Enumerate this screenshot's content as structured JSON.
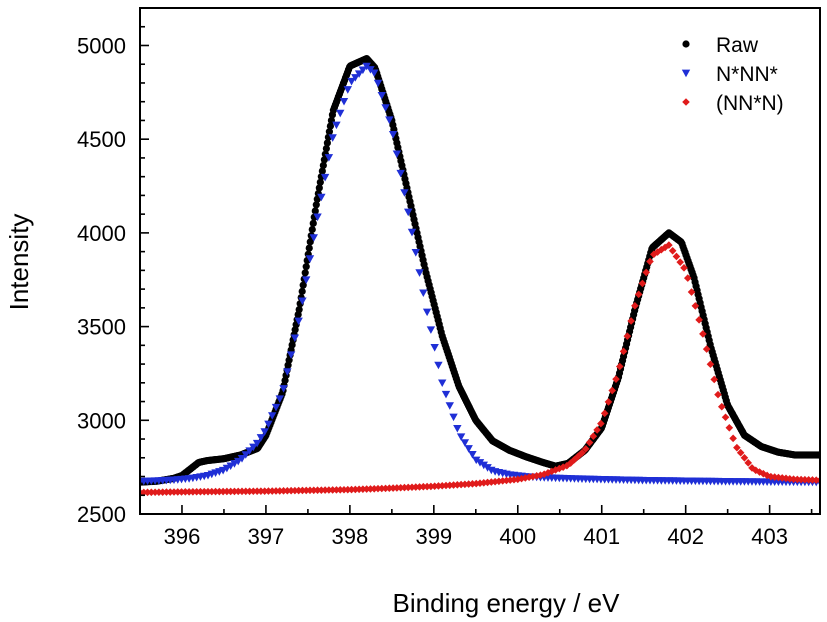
{
  "chart_data": {
    "type": "scatter",
    "xlabel": "Binding energy / eV",
    "ylabel": "Intensity",
    "xlim": [
      395.5,
      403.6
    ],
    "ylim": [
      2500,
      5200
    ],
    "x_ticks": [
      396,
      397,
      398,
      399,
      400,
      401,
      402,
      403
    ],
    "y_ticks": [
      2500,
      3000,
      3500,
      4000,
      4500,
      5000
    ],
    "grid": false,
    "legend_position": "top-right",
    "series": [
      {
        "name": "Raw",
        "marker": "circle",
        "color": "#000000",
        "x": [
          395.5,
          395.7,
          395.9,
          396.0,
          396.1,
          396.2,
          396.3,
          396.5,
          396.7,
          396.9,
          397.0,
          397.2,
          397.4,
          397.6,
          397.8,
          398.0,
          398.2,
          398.3,
          398.5,
          398.7,
          398.9,
          399.1,
          399.3,
          399.5,
          399.7,
          399.9,
          400.1,
          400.3,
          400.45,
          400.6,
          400.8,
          401.0,
          401.2,
          401.4,
          401.6,
          401.8,
          401.95,
          402.1,
          402.3,
          402.5,
          402.7,
          402.9,
          403.1,
          403.3,
          403.6
        ],
        "y": [
          2670,
          2675,
          2690,
          2705,
          2740,
          2775,
          2785,
          2795,
          2815,
          2850,
          2920,
          3150,
          3600,
          4150,
          4650,
          4890,
          4930,
          4880,
          4600,
          4200,
          3800,
          3450,
          3180,
          3000,
          2890,
          2840,
          2805,
          2775,
          2755,
          2770,
          2840,
          2960,
          3230,
          3600,
          3920,
          4000,
          3950,
          3760,
          3390,
          3080,
          2920,
          2860,
          2830,
          2815,
          2815
        ]
      },
      {
        "name": "N*NN*",
        "marker": "triangle-down",
        "color": "#1f2fd6",
        "x": [
          395.5,
          395.7,
          395.9,
          396.1,
          396.3,
          396.5,
          396.7,
          396.9,
          397.0,
          397.2,
          397.4,
          397.6,
          397.8,
          398.0,
          398.2,
          398.3,
          398.5,
          398.7,
          398.9,
          399.1,
          399.3,
          399.5,
          399.7,
          399.9,
          400.1,
          400.3,
          400.6,
          401.0,
          401.5,
          402.0,
          402.5,
          403.0,
          403.6
        ],
        "y": [
          2675,
          2678,
          2682,
          2690,
          2705,
          2735,
          2790,
          2880,
          2950,
          3150,
          3550,
          4050,
          4520,
          4800,
          4890,
          4850,
          4560,
          4100,
          3620,
          3200,
          2930,
          2790,
          2730,
          2710,
          2700,
          2695,
          2690,
          2685,
          2680,
          2677,
          2674,
          2672,
          2670
        ]
      },
      {
        "name": "(NN*N)",
        "marker": "diamond",
        "color": "#e01b1b",
        "x": [
          395.5,
          396.0,
          396.5,
          397.0,
          397.5,
          398.0,
          398.5,
          399.0,
          399.5,
          400.0,
          400.3,
          400.6,
          400.8,
          401.0,
          401.2,
          401.4,
          401.6,
          401.8,
          402.0,
          402.2,
          402.4,
          402.6,
          402.8,
          403.0,
          403.3,
          403.6
        ],
        "y": [
          2615,
          2618,
          2620,
          2622,
          2626,
          2630,
          2638,
          2648,
          2662,
          2685,
          2710,
          2760,
          2840,
          2990,
          3260,
          3620,
          3880,
          3935,
          3800,
          3470,
          3110,
          2860,
          2740,
          2700,
          2685,
          2680
        ]
      }
    ]
  }
}
